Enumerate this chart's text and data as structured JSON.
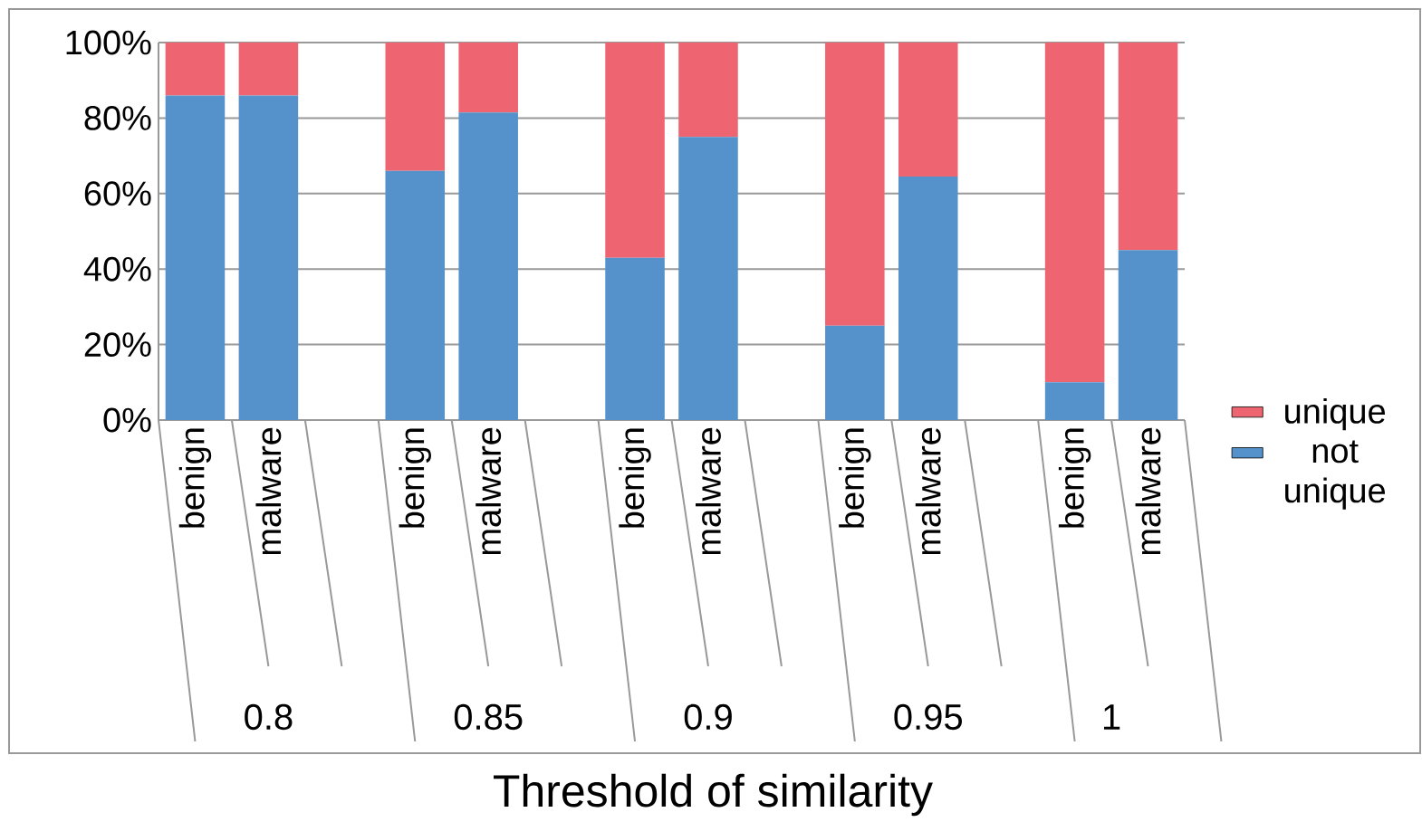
{
  "chart_data": {
    "type": "bar",
    "stacked": true,
    "categories": [
      "benign",
      "malware",
      null,
      "benign",
      "malware",
      null,
      "benign",
      "malware",
      null,
      "benign",
      "malware",
      null,
      "benign",
      "malware"
    ],
    "series": [
      {
        "name": "not unique",
        "color": "#5592cb",
        "values": [
          86,
          86,
          null,
          66,
          81.5,
          null,
          43,
          75,
          null,
          25,
          64.5,
          null,
          10,
          45
        ]
      },
      {
        "name": "unique",
        "color": "#ee6470",
        "values": [
          14,
          14,
          null,
          34,
          18.5,
          null,
          57,
          25,
          null,
          75,
          35.5,
          null,
          90,
          55
        ]
      }
    ],
    "xlabel": "Threshold of similarity",
    "annotations": [
      "0.8",
      "0.85",
      "0.9",
      "0.95",
      "1"
    ],
    "ylim": [
      0,
      100
    ],
    "yticks": [
      {
        "value": 0,
        "label": "0%"
      },
      {
        "value": 20,
        "label": "20%"
      },
      {
        "value": 40,
        "label": "40%"
      },
      {
        "value": 60,
        "label": "60%"
      },
      {
        "value": 80,
        "label": "80%"
      },
      {
        "value": 100,
        "label": "100%"
      }
    ],
    "grid": "y",
    "legend": "right"
  }
}
